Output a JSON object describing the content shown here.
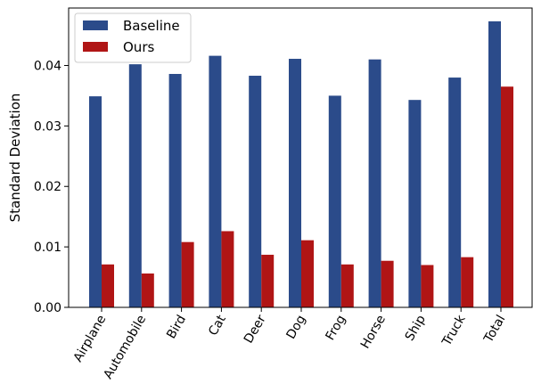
{
  "chart_data": {
    "type": "bar",
    "title": "",
    "xlabel": "",
    "ylabel": "Standard Deviation",
    "ylim": [
      0,
      0.0495
    ],
    "yticks": [
      "0.00",
      "0.01",
      "0.02",
      "0.03",
      "0.04"
    ],
    "categories": [
      "Airplane",
      "Automobile",
      "Bird",
      "Cat",
      "Deer",
      "Dog",
      "Frog",
      "Horse",
      "Ship",
      "Truck",
      "Total"
    ],
    "series": [
      {
        "name": "Baseline",
        "color": "#2b4b8a",
        "values": [
          0.0349,
          0.0402,
          0.0386,
          0.0416,
          0.0383,
          0.0411,
          0.035,
          0.041,
          0.0343,
          0.038,
          0.0473
        ]
      },
      {
        "name": "Ours",
        "color": "#b01515",
        "values": [
          0.0071,
          0.0056,
          0.0108,
          0.0126,
          0.0087,
          0.0111,
          0.0071,
          0.0077,
          0.007,
          0.0083,
          0.0365
        ]
      }
    ],
    "legend_position": "top-left",
    "grid": false
  }
}
